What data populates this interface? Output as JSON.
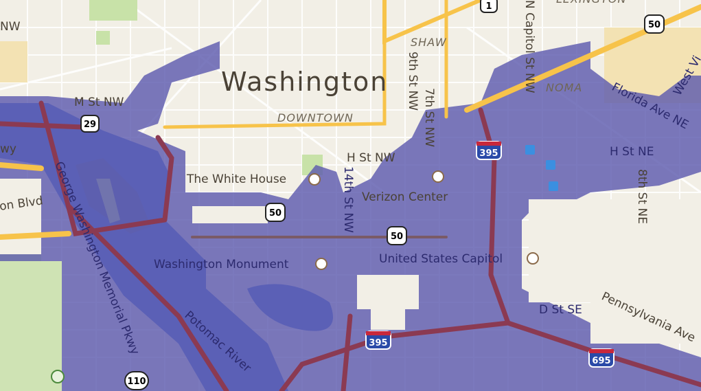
{
  "map": {
    "city_label": "Washington",
    "neighborhoods": [
      "DOWNTOWN",
      "SHAW",
      "NOMA",
      "LEXINGTON"
    ],
    "streets": {
      "m_st": "M St NW",
      "h_st_nw": "H St NW",
      "st14": "14th St NW",
      "st9": "9th St NW",
      "st7": "7th St NW",
      "n_capitol": "N Capitol St NW",
      "florida": "Florida Ave NE",
      "h_st_ne": "H St NE",
      "st8": "8th St NE",
      "west_va": "West Vi",
      "d_st": "D St SE",
      "penn": "Pennsylvania Ave",
      "gw_pkwy": "George Washington Memorial Pkwy",
      "blvd": "on Blvd",
      "nw": "NW",
      "wy": "wy"
    },
    "water": {
      "river": "Potomac River"
    },
    "landmarks": {
      "white_house": "The White House",
      "verizon": "Verizon Center",
      "monument": "Washington Monument",
      "capitol": "United States Capitol"
    },
    "shields": {
      "us1": "1",
      "us50a": "50",
      "us29": "29",
      "i395a": "395",
      "us50b": "50",
      "us50c": "50",
      "i395b": "395",
      "i695": "695",
      "r110": "110"
    },
    "colors": {
      "land": "#f2efe6",
      "overlay": "#5e5cae",
      "water": "#4d74d9",
      "highway": "#f7c34a",
      "freeway": "#8b3a52",
      "park": "#c8e2a8"
    }
  }
}
